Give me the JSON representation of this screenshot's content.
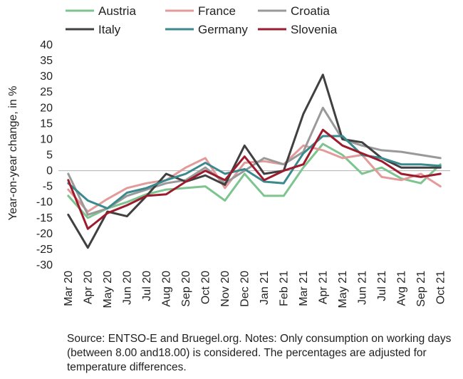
{
  "chart_data": {
    "type": "line",
    "ylabel": "Year-on-year change, in %",
    "ylim": [
      -30,
      40
    ],
    "ytick_step": 5,
    "grid": false,
    "legend_position": "top",
    "categories": [
      "Mar 20",
      "Apr 20",
      "May 20",
      "Jun 20",
      "Jul 20",
      "Aug 20",
      "Sep 20",
      "Oct 20",
      "Nov 20",
      "Dec 20",
      "Jan 21",
      "Feb 21",
      "Mar 21",
      "Apr 21",
      "May 21",
      "Jun 21",
      "Jul 21",
      "Avg 21",
      "Sep 21",
      "Oct 21"
    ],
    "series": [
      {
        "name": "Austria",
        "color": "#7dc48f",
        "values": [
          -8,
          -15,
          -12,
          -10,
          -7.5,
          -6,
          -5.5,
          -5,
          -9.5,
          -1,
          -8,
          -8,
          1,
          8.5,
          5,
          -1,
          1,
          -2.5,
          -4,
          2
        ]
      },
      {
        "name": "France",
        "color": "#e39a9a",
        "values": [
          -6,
          -13,
          -9,
          -5.5,
          -4,
          -3,
          1,
          4,
          -5.5,
          2.5,
          3,
          2,
          8,
          6.5,
          4,
          5,
          -2,
          -3,
          -1,
          -5
        ]
      },
      {
        "name": "Croatia",
        "color": "#999999",
        "values": [
          -1,
          -14,
          -12,
          -8,
          -6,
          -4,
          -3,
          1,
          -4,
          0,
          4,
          2,
          6,
          20,
          10,
          8,
          6.5,
          6,
          5,
          4
        ]
      },
      {
        "name": "Italy",
        "color": "#404040",
        "values": [
          -14,
          -24.5,
          -13,
          -14.5,
          -8,
          -1,
          -3.5,
          -1.5,
          -4.5,
          8,
          -1,
          0,
          18,
          30.5,
          10,
          9,
          4,
          1,
          1,
          1
        ]
      },
      {
        "name": "Germany",
        "color": "#3a8a8d",
        "values": [
          -4,
          -9.5,
          -12,
          -7,
          -5.5,
          -3,
          -1,
          2.5,
          -1,
          0.5,
          -3.5,
          -4,
          5.5,
          11,
          11,
          5,
          4,
          2,
          2,
          1.5
        ]
      },
      {
        "name": "Slovenia",
        "color": "#9e1b2e",
        "values": [
          -3,
          -18.5,
          -13.5,
          -11,
          -8,
          -7.5,
          -3.5,
          0,
          -3,
          4.5,
          -3,
          0,
          2,
          13,
          8,
          5.5,
          3,
          -1,
          -2,
          -1
        ]
      }
    ]
  },
  "source_note": "Source: ENTSO-E and Bruegel.org. Notes: Only consumption on working days (between 8.00 and18.00) is considered. The percentages are adjusted for temperature differences."
}
